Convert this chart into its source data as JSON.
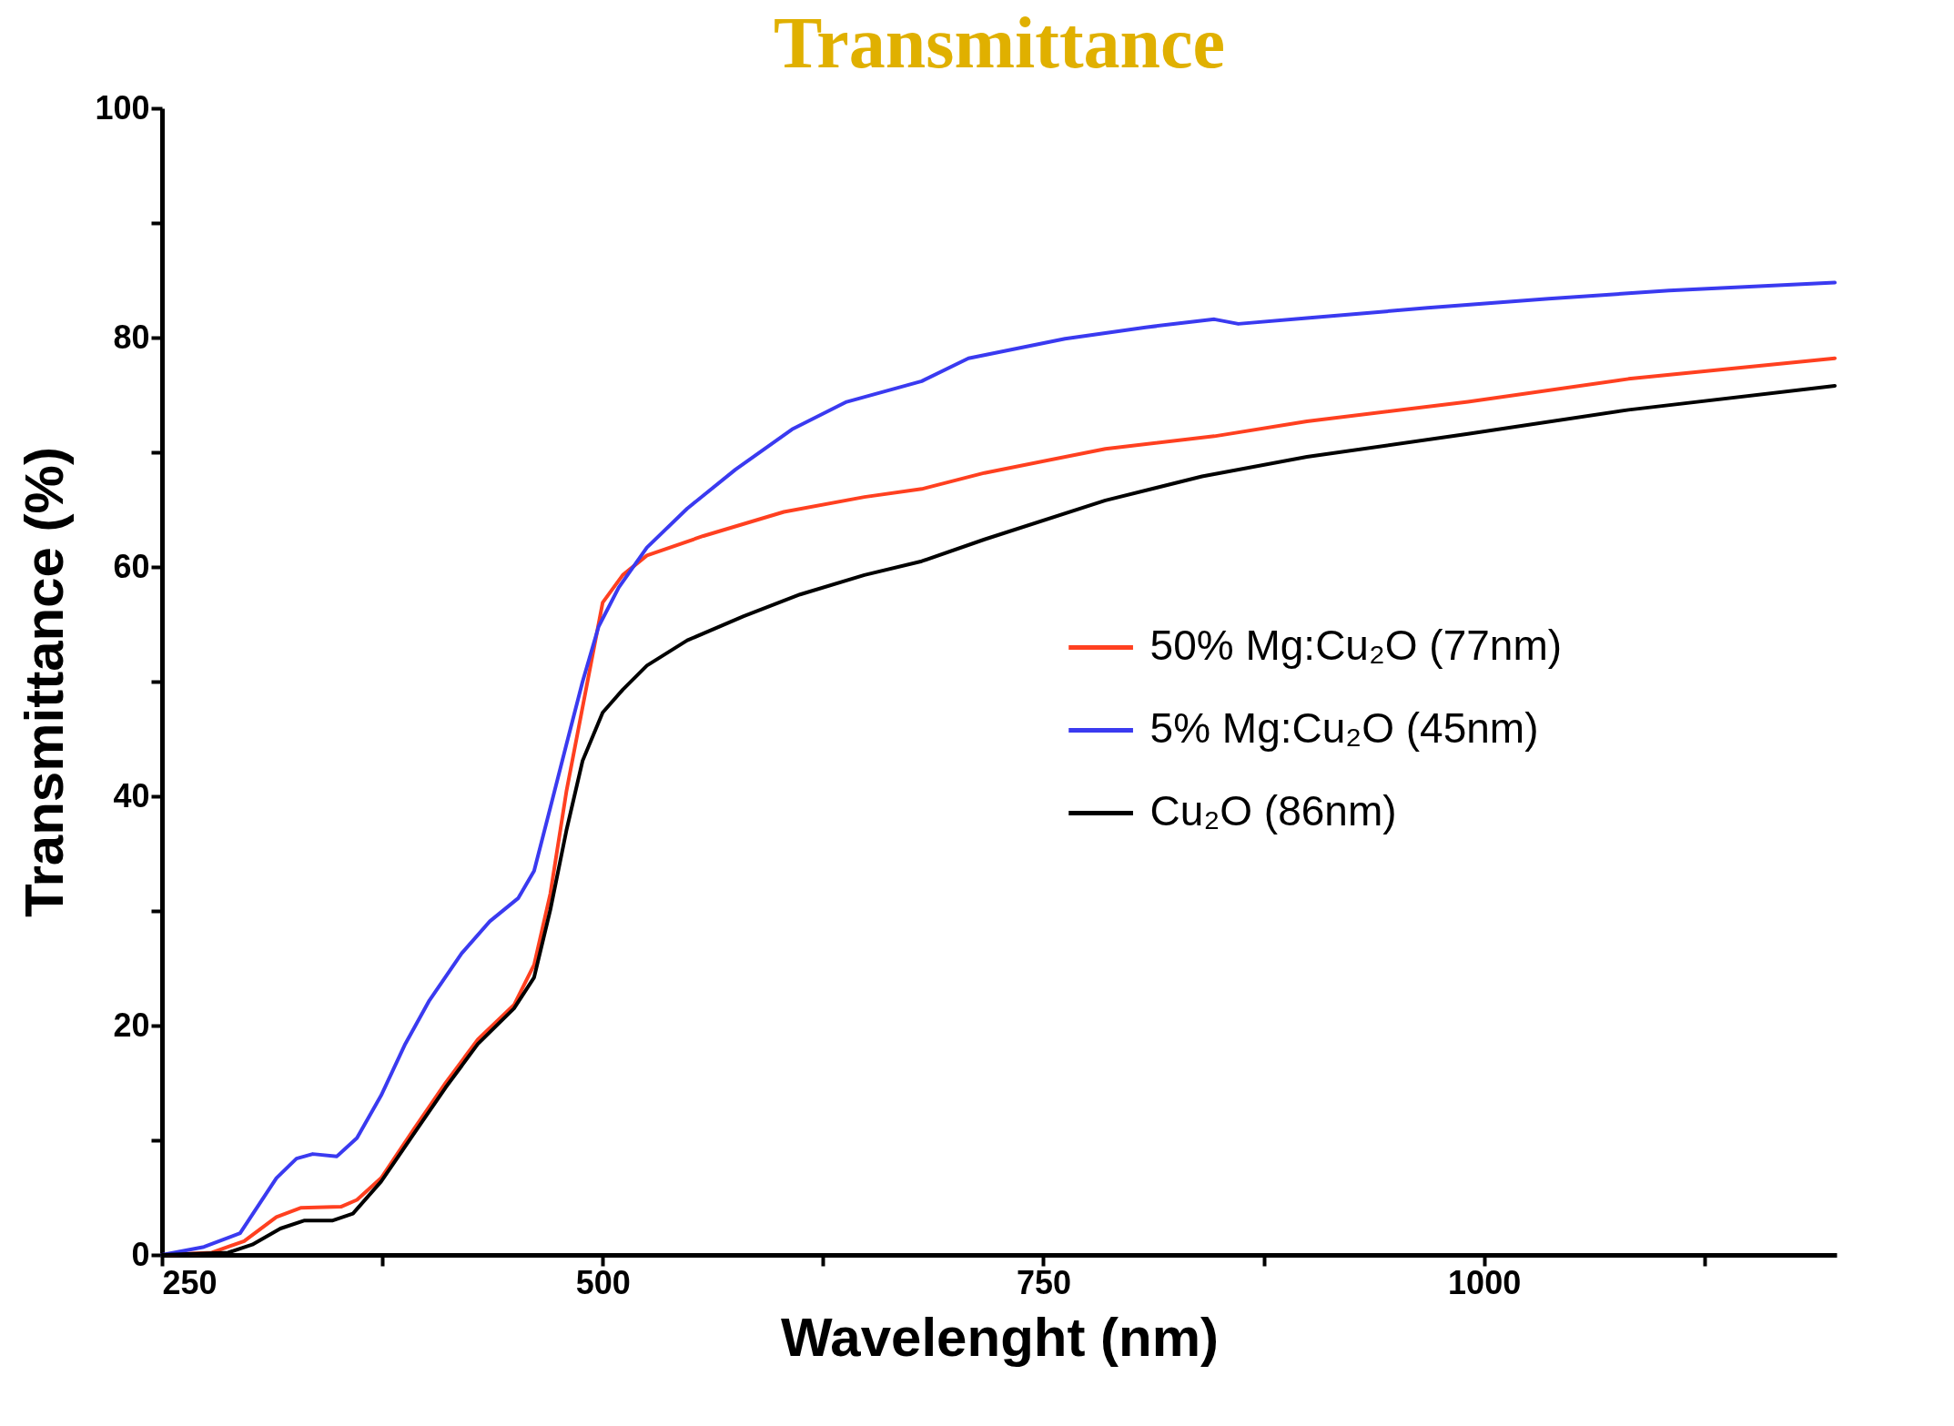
{
  "chart_data": {
    "type": "line",
    "title": "Transmittance",
    "xlabel": "Wavelenght (nm)",
    "ylabel": "Transmittance (%)",
    "xlim": [
      250,
      1200
    ],
    "ylim": [
      0,
      100
    ],
    "xticks": [
      250,
      {
        "value": 375,
        "label": null
      },
      500,
      {
        "value": 625,
        "label": null
      },
      750,
      {
        "value": 875,
        "label": null
      },
      1000,
      {
        "value": 1125,
        "label": null
      }
    ],
    "yticks": [
      0,
      {
        "value": 10,
        "label": null
      },
      20,
      {
        "value": 30,
        "label": null
      },
      40,
      {
        "value": 50,
        "label": null
      },
      60,
      {
        "value": 70,
        "label": null
      },
      80,
      {
        "value": 90,
        "label": null
      },
      100
    ],
    "grid": false,
    "legend": "right",
    "line_style": "solid",
    "marker": "none",
    "series": [
      {
        "name": "50% Mg:Cu₂O (77nm)",
        "color": "#ff4020",
        "x": [
          250,
          278.3,
          296.6,
          314.9,
          328.6,
          351.5,
          360.6,
          374.3,
          392.6,
          410.9,
          429.2,
          449.7,
          461.1,
          470.3,
          479.4,
          500,
          511.4,
          525.1,
          557.1,
          602.8,
          648.5,
          681,
          716.6,
          785.2,
          847,
          899.5,
          990.9,
          1082,
          1199
        ],
        "values": [
          0,
          0.2,
          1.2,
          3.3,
          4.1,
          4.2,
          4.8,
          6.7,
          10.9,
          15,
          18.8,
          21.8,
          25.3,
          31.5,
          40.4,
          56.9,
          59.3,
          61,
          62.7,
          64.8,
          66.1,
          66.8,
          68.2,
          70.3,
          71.4,
          72.7,
          74.4,
          76.4,
          78.2
        ]
      },
      {
        "name": "5% Mg:Cu₂O (45nm)",
        "color": "#3a3af0",
        "x": [
          250,
          273.8,
          294.3,
          314.9,
          326.3,
          335.5,
          349.2,
          360.6,
          374.3,
          388,
          401.7,
          420,
          436,
          452,
          461.1,
          470.3,
          479.4,
          488.6,
          497.7,
          509.1,
          525.1,
          548,
          575.4,
          607.4,
          638.4,
          681,
          707.5,
          762.3,
          808,
          847,
          860.6,
          899.5,
          968,
          1036.6,
          1105,
          1199
        ],
        "values": [
          0,
          0.7,
          1.9,
          6.7,
          8.4,
          8.8,
          8.6,
          10.2,
          13.9,
          18.4,
          22.2,
          26.3,
          29.1,
          31.1,
          33.5,
          39,
          44.5,
          50,
          54.8,
          58.2,
          61.7,
          65.1,
          68.5,
          72,
          74.4,
          76.2,
          78.2,
          79.9,
          80.9,
          81.6,
          81.2,
          81.7,
          82.6,
          83.4,
          84.1,
          84.8
        ]
      },
      {
        "name": "Cu₂O (86nm)",
        "color": "#000000",
        "x": [
          250,
          287.5,
          301.2,
          317.2,
          330.9,
          346.9,
          358.3,
          374.3,
          392.6,
          410.9,
          429.2,
          449.7,
          461.1,
          470.3,
          479.4,
          488.6,
          500,
          511.4,
          525.1,
          548,
          580,
          612,
          648.5,
          681,
          716.6,
          785.2,
          840,
          899.5,
          990.9,
          1082,
          1199
        ],
        "values": [
          0,
          0.2,
          0.9,
          2.3,
          3,
          3,
          3.6,
          6.4,
          10.5,
          14.6,
          18.4,
          21.5,
          24.2,
          30.1,
          37,
          43.1,
          47.3,
          49.3,
          51.4,
          53.6,
          55.7,
          57.6,
          59.3,
          60.5,
          62.4,
          65.8,
          67.9,
          69.6,
          71.6,
          73.7,
          75.8
        ]
      }
    ]
  }
}
